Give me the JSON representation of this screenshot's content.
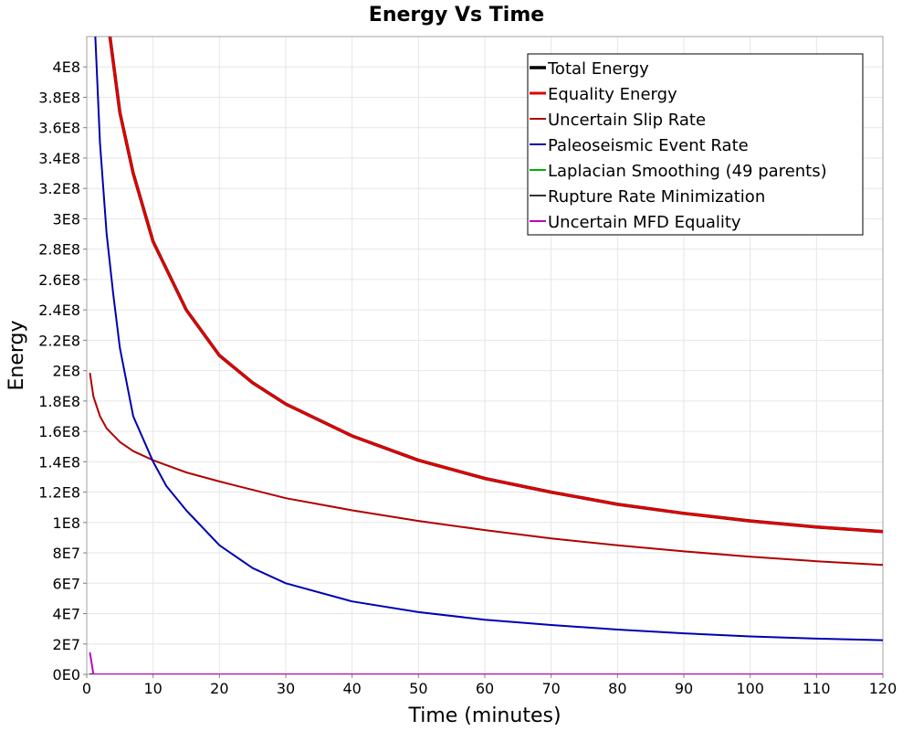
{
  "chart_data": {
    "type": "line",
    "title": "Energy Vs Time",
    "xlabel": "Time (minutes)",
    "ylabel": "Energy",
    "xlim": [
      0,
      120
    ],
    "ylim": [
      0,
      420000000
    ],
    "x_ticks": [
      0,
      10,
      20,
      30,
      40,
      50,
      60,
      70,
      80,
      90,
      100,
      110,
      120
    ],
    "y_ticks": [
      0,
      20000000,
      40000000,
      60000000,
      80000000,
      100000000,
      120000000,
      140000000,
      160000000,
      180000000,
      200000000,
      220000000,
      240000000,
      260000000,
      280000000,
      300000000,
      320000000,
      340000000,
      360000000,
      380000000,
      400000000
    ],
    "y_tick_labels": [
      "0E0",
      "2E7",
      "4E7",
      "6E7",
      "8E7",
      "1E8",
      "1.2E8",
      "1.4E8",
      "1.6E8",
      "1.8E8",
      "2E8",
      "2.2E8",
      "2.4E8",
      "2.6E8",
      "2.8E8",
      "3E8",
      "3.2E8",
      "3.4E8",
      "3.6E8",
      "3.8E8",
      "4E8"
    ],
    "grid": true,
    "legend_position": "top-right",
    "series": [
      {
        "name": "Total Energy",
        "color": "#000000",
        "width": 3.5,
        "x": [
          3.5,
          5,
          7,
          10,
          15,
          20,
          25,
          30,
          40,
          50,
          60,
          70,
          80,
          90,
          100,
          110,
          120
        ],
        "y": [
          420000000,
          370000000,
          330000000,
          285000000,
          240000000,
          210000000,
          192000000,
          178000000,
          157000000,
          141000000,
          129000000,
          120000000,
          112000000,
          106000000,
          101000000,
          97000000,
          94000000
        ]
      },
      {
        "name": "Equality Energy",
        "color": "#e00000",
        "width": 3,
        "x": [
          3.5,
          5,
          7,
          10,
          15,
          20,
          25,
          30,
          40,
          50,
          60,
          70,
          80,
          90,
          100,
          110,
          120
        ],
        "y": [
          420000000,
          370000000,
          330000000,
          285000000,
          240000000,
          210000000,
          192000000,
          178000000,
          157000000,
          141000000,
          129000000,
          120000000,
          112000000,
          106000000,
          101000000,
          97000000,
          94000000
        ]
      },
      {
        "name": "Uncertain Slip Rate",
        "color": "#b00000",
        "width": 2,
        "x": [
          0.5,
          1,
          2,
          3,
          5,
          7,
          10,
          15,
          20,
          30,
          40,
          50,
          60,
          70,
          80,
          90,
          100,
          110,
          120
        ],
        "y": [
          198000000,
          183000000,
          170000000,
          162000000,
          153000000,
          147000000,
          141000000,
          133000000,
          127000000,
          116000000,
          108000000,
          101000000,
          95000000,
          89500000,
          85000000,
          81000000,
          77500000,
          74500000,
          72000000
        ]
      },
      {
        "name": "Paleoseismic Event Rate",
        "color": "#0000b0",
        "width": 2,
        "x": [
          1.3,
          2,
          3,
          4,
          5,
          7,
          10,
          12,
          15,
          20,
          25,
          30,
          40,
          50,
          60,
          70,
          80,
          90,
          100,
          110,
          120
        ],
        "y": [
          420000000,
          350000000,
          290000000,
          250000000,
          215000000,
          170000000,
          140000000,
          124000000,
          108000000,
          85000000,
          70000000,
          60000000,
          48000000,
          41000000,
          36000000,
          32500000,
          29500000,
          27000000,
          25000000,
          23500000,
          22500000
        ]
      },
      {
        "name": "Laplacian Smoothing (49 parents)",
        "color": "#00b000",
        "width": 2,
        "x": [
          0.5,
          120
        ],
        "y": [
          0,
          0
        ]
      },
      {
        "name": "Rupture Rate Minimization",
        "color": "#333333",
        "width": 2,
        "x": [
          0.5,
          120
        ],
        "y": [
          0,
          0
        ]
      },
      {
        "name": "Uncertain MFD Equality",
        "color": "#c000c0",
        "width": 2,
        "x": [
          0.5,
          1.0,
          120
        ],
        "y": [
          14000000,
          0,
          0
        ]
      }
    ]
  }
}
